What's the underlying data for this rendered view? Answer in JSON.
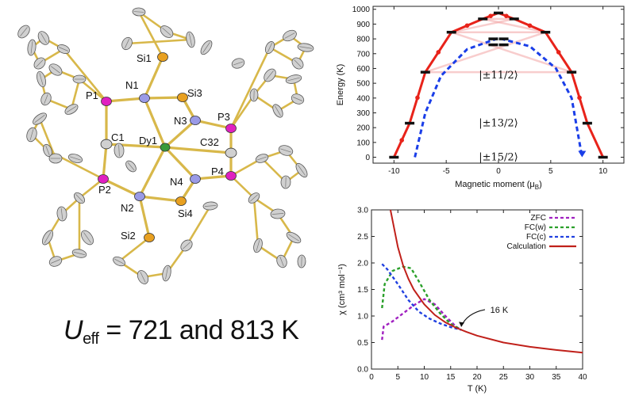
{
  "molecule": {
    "atom_labels": [
      "Si1",
      "N1",
      "Si3",
      "P1",
      "P3",
      "N3",
      "C1",
      "Dy1",
      "C32",
      "N4",
      "P4",
      "P2",
      "N2",
      "Si4",
      "Si2"
    ],
    "colors": {
      "Dy": "#3a9a3a",
      "N": "#9a9ae6",
      "P": "#e020c0",
      "Si": "#e8a020",
      "C": "#d0d0d0",
      "bond": "#d8b84a"
    }
  },
  "ueff": {
    "symbol": "U",
    "subscript": "eff",
    "text": "= 721 and 813 K"
  },
  "chart_data": [
    {
      "type": "line",
      "xlabel": "Magnetic moment (μ",
      "xlabel_sub": "B",
      "xlabel_close": ")",
      "ylabel": "Energy (K)",
      "xlim": [
        -12,
        12
      ],
      "ylim": [
        -40,
        1020
      ],
      "xticks": [
        -10,
        -5,
        0,
        5,
        10
      ],
      "yticks": [
        0,
        100,
        200,
        300,
        400,
        500,
        600,
        700,
        800,
        900,
        1000
      ],
      "state_labels": [
        "|±11/2⟩",
        "|±13/2⟩",
        "|±15/2⟩"
      ],
      "series": [
        {
          "color": "#e8231a",
          "style": "solid-arrows",
          "points": [
            [
              -10,
              0
            ],
            [
              -8.5,
              230
            ],
            [
              -7,
              575
            ],
            [
              -4.5,
              845
            ],
            [
              -1.5,
              935
            ],
            [
              0,
              975
            ],
            [
              1.5,
              935
            ],
            [
              4.5,
              845
            ],
            [
              7,
              575
            ],
            [
              8.5,
              230
            ],
            [
              10,
              0
            ]
          ]
        },
        {
          "color": "#1a3ee8",
          "style": "dashed-arrow",
          "points": [
            [
              -8,
              0
            ],
            [
              -7,
              300
            ],
            [
              -5.5,
              550
            ],
            [
              -3,
              730
            ],
            [
              0,
              805
            ],
            [
              3,
              750
            ],
            [
              5.5,
              600
            ],
            [
              7,
              400
            ],
            [
              8,
              0
            ]
          ]
        }
      ],
      "levels": [
        {
          "x": -10,
          "y": 0
        },
        {
          "x": 10,
          "y": 0
        },
        {
          "x": -8.5,
          "y": 230
        },
        {
          "x": 8.5,
          "y": 230
        },
        {
          "x": -7,
          "y": 575
        },
        {
          "x": 7,
          "y": 575
        },
        {
          "x": -4.5,
          "y": 845
        },
        {
          "x": 4.5,
          "y": 845
        },
        {
          "x": -1.5,
          "y": 935
        },
        {
          "x": 1.5,
          "y": 935
        },
        {
          "x": 0,
          "y": 975
        },
        {
          "x": -0.5,
          "y": 800
        },
        {
          "x": 0.5,
          "y": 800
        },
        {
          "x": -0.5,
          "y": 760
        },
        {
          "x": 0.5,
          "y": 760
        }
      ]
    },
    {
      "type": "line",
      "xlabel": "T (K)",
      "ylabel": "χ (cm³ mol⁻¹)",
      "xlim": [
        0,
        40
      ],
      "ylim": [
        0,
        3.0
      ],
      "xticks": [
        0,
        5,
        10,
        15,
        20,
        25,
        30,
        35,
        40
      ],
      "yticks": [
        0.0,
        0.5,
        1.0,
        1.5,
        2.0,
        2.5,
        3.0
      ],
      "annotation": "16 K",
      "series": [
        {
          "name": "ZFC",
          "color": "#a020c0",
          "dash": "4,3",
          "points": [
            [
              2,
              0.55
            ],
            [
              2.3,
              0.8
            ],
            [
              4,
              0.9
            ],
            [
              6,
              1.05
            ],
            [
              8,
              1.2
            ],
            [
              10,
              1.32
            ],
            [
              12,
              1.22
            ],
            [
              14,
              1.0
            ],
            [
              16,
              0.8
            ],
            [
              17,
              0.74
            ]
          ]
        },
        {
          "name": "FC(w)",
          "color": "#2aa02a",
          "dash": "4,3",
          "points": [
            [
              2,
              1.15
            ],
            [
              2.5,
              1.6
            ],
            [
              4,
              1.85
            ],
            [
              6,
              1.93
            ],
            [
              7.5,
              1.9
            ],
            [
              9,
              1.65
            ],
            [
              11,
              1.3
            ],
            [
              13,
              1.05
            ],
            [
              15,
              0.85
            ],
            [
              17,
              0.74
            ]
          ]
        },
        {
          "name": "FC(c)",
          "color": "#2040e0",
          "dash": "4,3",
          "points": [
            [
              2,
              1.98
            ],
            [
              3,
              1.88
            ],
            [
              5,
              1.6
            ],
            [
              7,
              1.3
            ],
            [
              9,
              1.08
            ],
            [
              11,
              0.95
            ],
            [
              13,
              0.86
            ],
            [
              15,
              0.79
            ],
            [
              17,
              0.74
            ]
          ]
        },
        {
          "name": "Calculation",
          "color": "#c0201a",
          "dash": "",
          "points": [
            [
              3.6,
              3.0
            ],
            [
              4,
              2.8
            ],
            [
              5,
              2.3
            ],
            [
              6,
              1.95
            ],
            [
              7,
              1.7
            ],
            [
              8,
              1.5
            ],
            [
              10,
              1.22
            ],
            [
              12,
              1.02
            ],
            [
              14,
              0.88
            ],
            [
              16,
              0.78
            ],
            [
              18,
              0.7
            ],
            [
              20,
              0.63
            ],
            [
              25,
              0.5
            ],
            [
              30,
              0.42
            ],
            [
              35,
              0.36
            ],
            [
              40,
              0.31
            ]
          ]
        }
      ]
    }
  ]
}
